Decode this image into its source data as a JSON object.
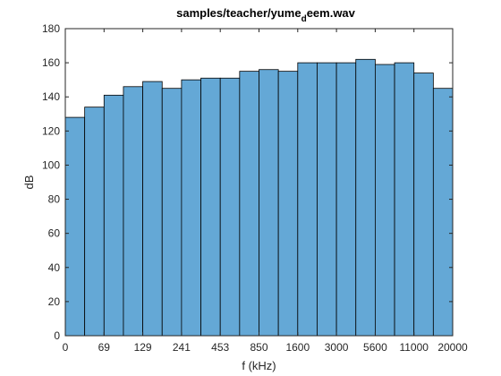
{
  "chart_data": {
    "type": "bar",
    "title": {
      "before_subscript": "samples/teacher/yume",
      "subscript": "d",
      "after_subscript": "eem.wav"
    },
    "xlabel": "f (kHz)",
    "ylabel": "dB",
    "ylim": [
      0,
      180
    ],
    "yticks": [
      "0",
      "20",
      "40",
      "60",
      "80",
      "100",
      "120",
      "140",
      "160",
      "180"
    ],
    "xtick_labels": [
      "0",
      "69",
      "129",
      "241",
      "453",
      "850",
      "1600",
      "3000",
      "5600",
      "11000",
      "20000"
    ],
    "values": [
      128,
      134,
      141,
      146,
      149,
      145,
      150,
      151,
      151,
      155,
      156,
      155,
      160,
      160,
      160,
      162,
      159,
      160,
      154,
      145
    ],
    "grid": false,
    "legend": "none",
    "colors": {
      "bar_fill": "#64a8d6",
      "bar_edge": "#000000",
      "axes": "#262626"
    }
  }
}
